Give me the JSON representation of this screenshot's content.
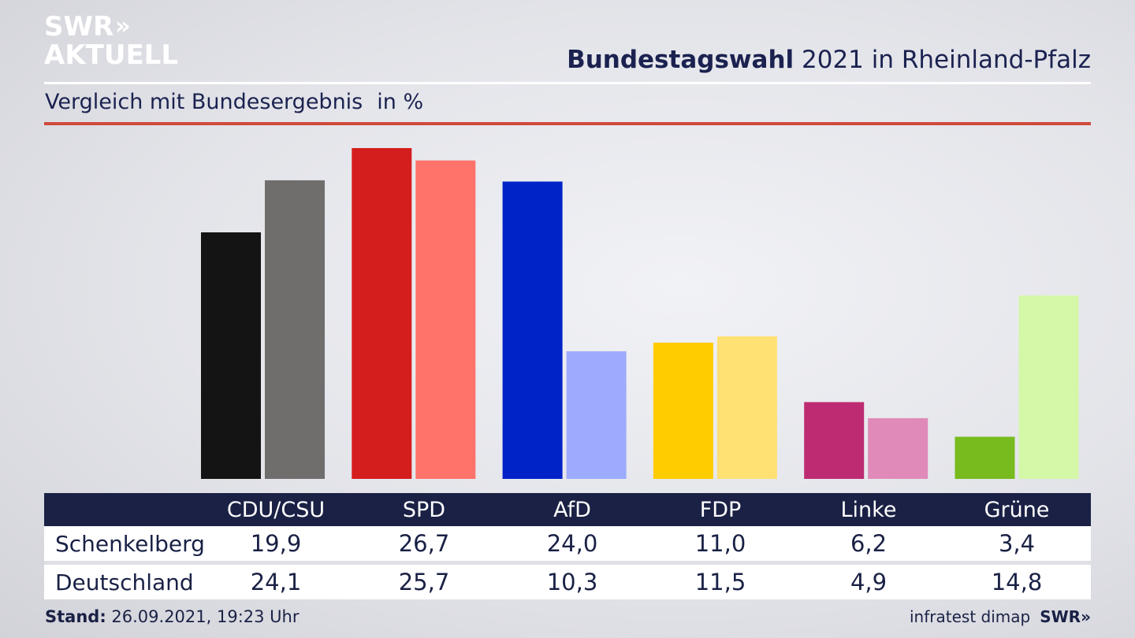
{
  "logo": {
    "line1": "SWR",
    "line2": "AKTUELL",
    "chevrons": "»"
  },
  "header": {
    "title_bold": "Bundestagswahl",
    "title_rest": " 2021 in Rheinland-Pfalz",
    "subtitle": "Vergleich mit Bundesergebnis",
    "unit": "in %"
  },
  "chart_data": {
    "type": "bar",
    "categories": [
      "CDU/CSU",
      "SPD",
      "AfD",
      "FDP",
      "Linke",
      "Grüne"
    ],
    "series": [
      {
        "name": "Schenkelberg",
        "values": [
          19.9,
          26.7,
          24.0,
          11.0,
          6.2,
          3.4
        ],
        "colors": [
          "#141414",
          "#d41d1d",
          "#0023c8",
          "#ffcc00",
          "#bd2c72",
          "#78bb1e"
        ]
      },
      {
        "name": "Deutschland",
        "values": [
          24.1,
          25.7,
          10.3,
          11.5,
          4.9,
          14.8
        ],
        "colors": [
          "#6f6e6c",
          "#ff736b",
          "#9dabff",
          "#ffe072",
          "#df8ab8",
          "#d4f7a8"
        ]
      }
    ],
    "ylim": [
      0,
      26.7
    ]
  },
  "table": {
    "headers": [
      "",
      "CDU/CSU",
      "SPD",
      "AfD",
      "FDP",
      "Linke",
      "Grüne"
    ],
    "rows": [
      {
        "label": "Schenkelberg",
        "values": [
          "19,9",
          "26,7",
          "24,0",
          "11,0",
          "6,2",
          "3,4"
        ]
      },
      {
        "label": "Deutschland",
        "values": [
          "24,1",
          "25,7",
          "10,3",
          "11,5",
          "4,9",
          "14,8"
        ]
      }
    ]
  },
  "footer": {
    "stand_label": "Stand:",
    "stand_value": " 26.09.2021, 19:23 Uhr",
    "source": "infratest dimap",
    "brand": "SWR»"
  },
  "colors": {
    "navy": "#1a2145",
    "accent_red": "#cf4a3a"
  }
}
